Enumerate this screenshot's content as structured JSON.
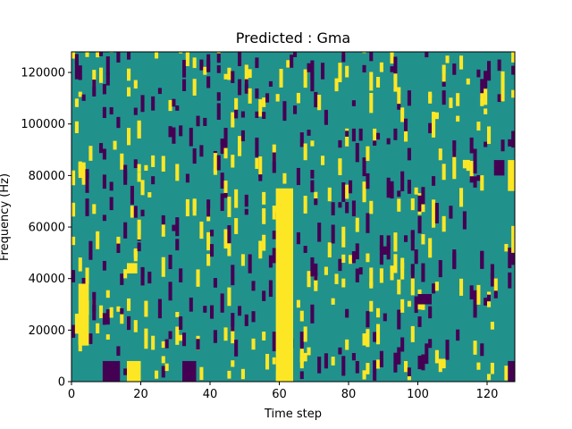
{
  "chart_data": {
    "type": "heatmap",
    "title": "Predicted : Gma",
    "xlabel": "Time step",
    "ylabel": "Frequency (Hz)",
    "xlim": [
      0,
      128
    ],
    "ylim": [
      0,
      128000
    ],
    "x_ticks": [
      0,
      20,
      40,
      60,
      80,
      100,
      120
    ],
    "y_ticks": [
      0,
      20000,
      40000,
      60000,
      80000,
      100000,
      120000
    ],
    "x_tick_labels": [
      "0",
      "20",
      "40",
      "60",
      "80",
      "100",
      "120"
    ],
    "y_tick_labels": [
      "0",
      "20000",
      "40000",
      "60000",
      "80000",
      "100000",
      "120000"
    ],
    "grid": false,
    "legend": "none",
    "colors": {
      "background": "#21918c",
      "low": "#440154",
      "high": "#fde725"
    },
    "value_levels": {
      "low": 0,
      "background": 0.5,
      "high": 1
    },
    "high_regions": [
      {
        "t": [
          16,
          20
        ],
        "f": [
          0,
          8000
        ]
      },
      {
        "t": [
          59,
          64
        ],
        "f": [
          0,
          75000
        ]
      },
      {
        "t": [
          2,
          5
        ],
        "f": [
          14000,
          38000
        ]
      },
      {
        "t": [
          16,
          19
        ],
        "f": [
          42000,
          46000
        ]
      },
      {
        "t": [
          126,
          128
        ],
        "f": [
          74000,
          86000
        ]
      }
    ],
    "low_regions": [
      {
        "t": [
          9,
          14
        ],
        "f": [
          0,
          8000
        ]
      },
      {
        "t": [
          32,
          36
        ],
        "f": [
          0,
          8000
        ]
      },
      {
        "t": [
          126,
          128
        ],
        "f": [
          0,
          8000
        ]
      },
      {
        "t": [
          122,
          125
        ],
        "f": [
          80000,
          86000
        ]
      },
      {
        "t": [
          100,
          104
        ],
        "f": [
          30000,
          34000
        ]
      }
    ]
  }
}
